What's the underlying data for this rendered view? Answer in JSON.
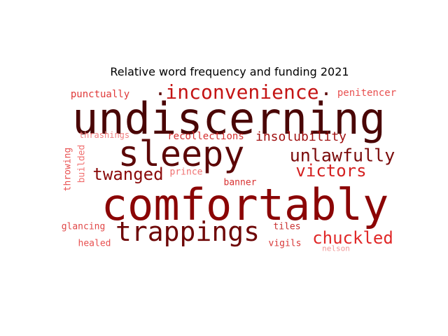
{
  "chart_data": {
    "type": "wordcloud",
    "title": "Relative word frequency and funding 2021",
    "words": [
      {
        "text": "undiscerning",
        "color": "#4a0606"
      },
      {
        "text": "comfortably",
        "color": "#8b0505"
      },
      {
        "text": "sleepy",
        "color": "#5c0707"
      },
      {
        "text": "trappings",
        "color": "#6e0707"
      },
      {
        "text": "inconvenience",
        "color": "#c41414"
      },
      {
        "text": "unlawfully",
        "color": "#7a0a0a"
      },
      {
        "text": "victors",
        "color": "#d42020"
      },
      {
        "text": "chuckled",
        "color": "#e02828"
      },
      {
        "text": "twanged",
        "color": "#8a0a0a"
      },
      {
        "text": "insolubility",
        "color": "#a01010"
      },
      {
        "text": "recollections",
        "color": "#d43030"
      },
      {
        "text": "punctually",
        "color": "#e03838"
      },
      {
        "text": "penitencer",
        "color": "#e85050"
      },
      {
        "text": "thrashings",
        "color": "#f08080"
      },
      {
        "text": "prince",
        "color": "#f07070"
      },
      {
        "text": "banner",
        "color": "#d83030"
      },
      {
        "text": "throwing",
        "color": "#e85050"
      },
      {
        "text": "builded",
        "color": "#f07070"
      },
      {
        "text": "glancing",
        "color": "#e04848"
      },
      {
        "text": "healed",
        "color": "#e85050"
      },
      {
        "text": "tiles",
        "color": "#c83030"
      },
      {
        "text": "vigils",
        "color": "#d83838"
      },
      {
        "text": "nelson",
        "color": "#f09898"
      },
      {
        "text": ".",
        "color": "#5c0707"
      },
      {
        "text": ".",
        "color": "#5c0707"
      }
    ]
  }
}
